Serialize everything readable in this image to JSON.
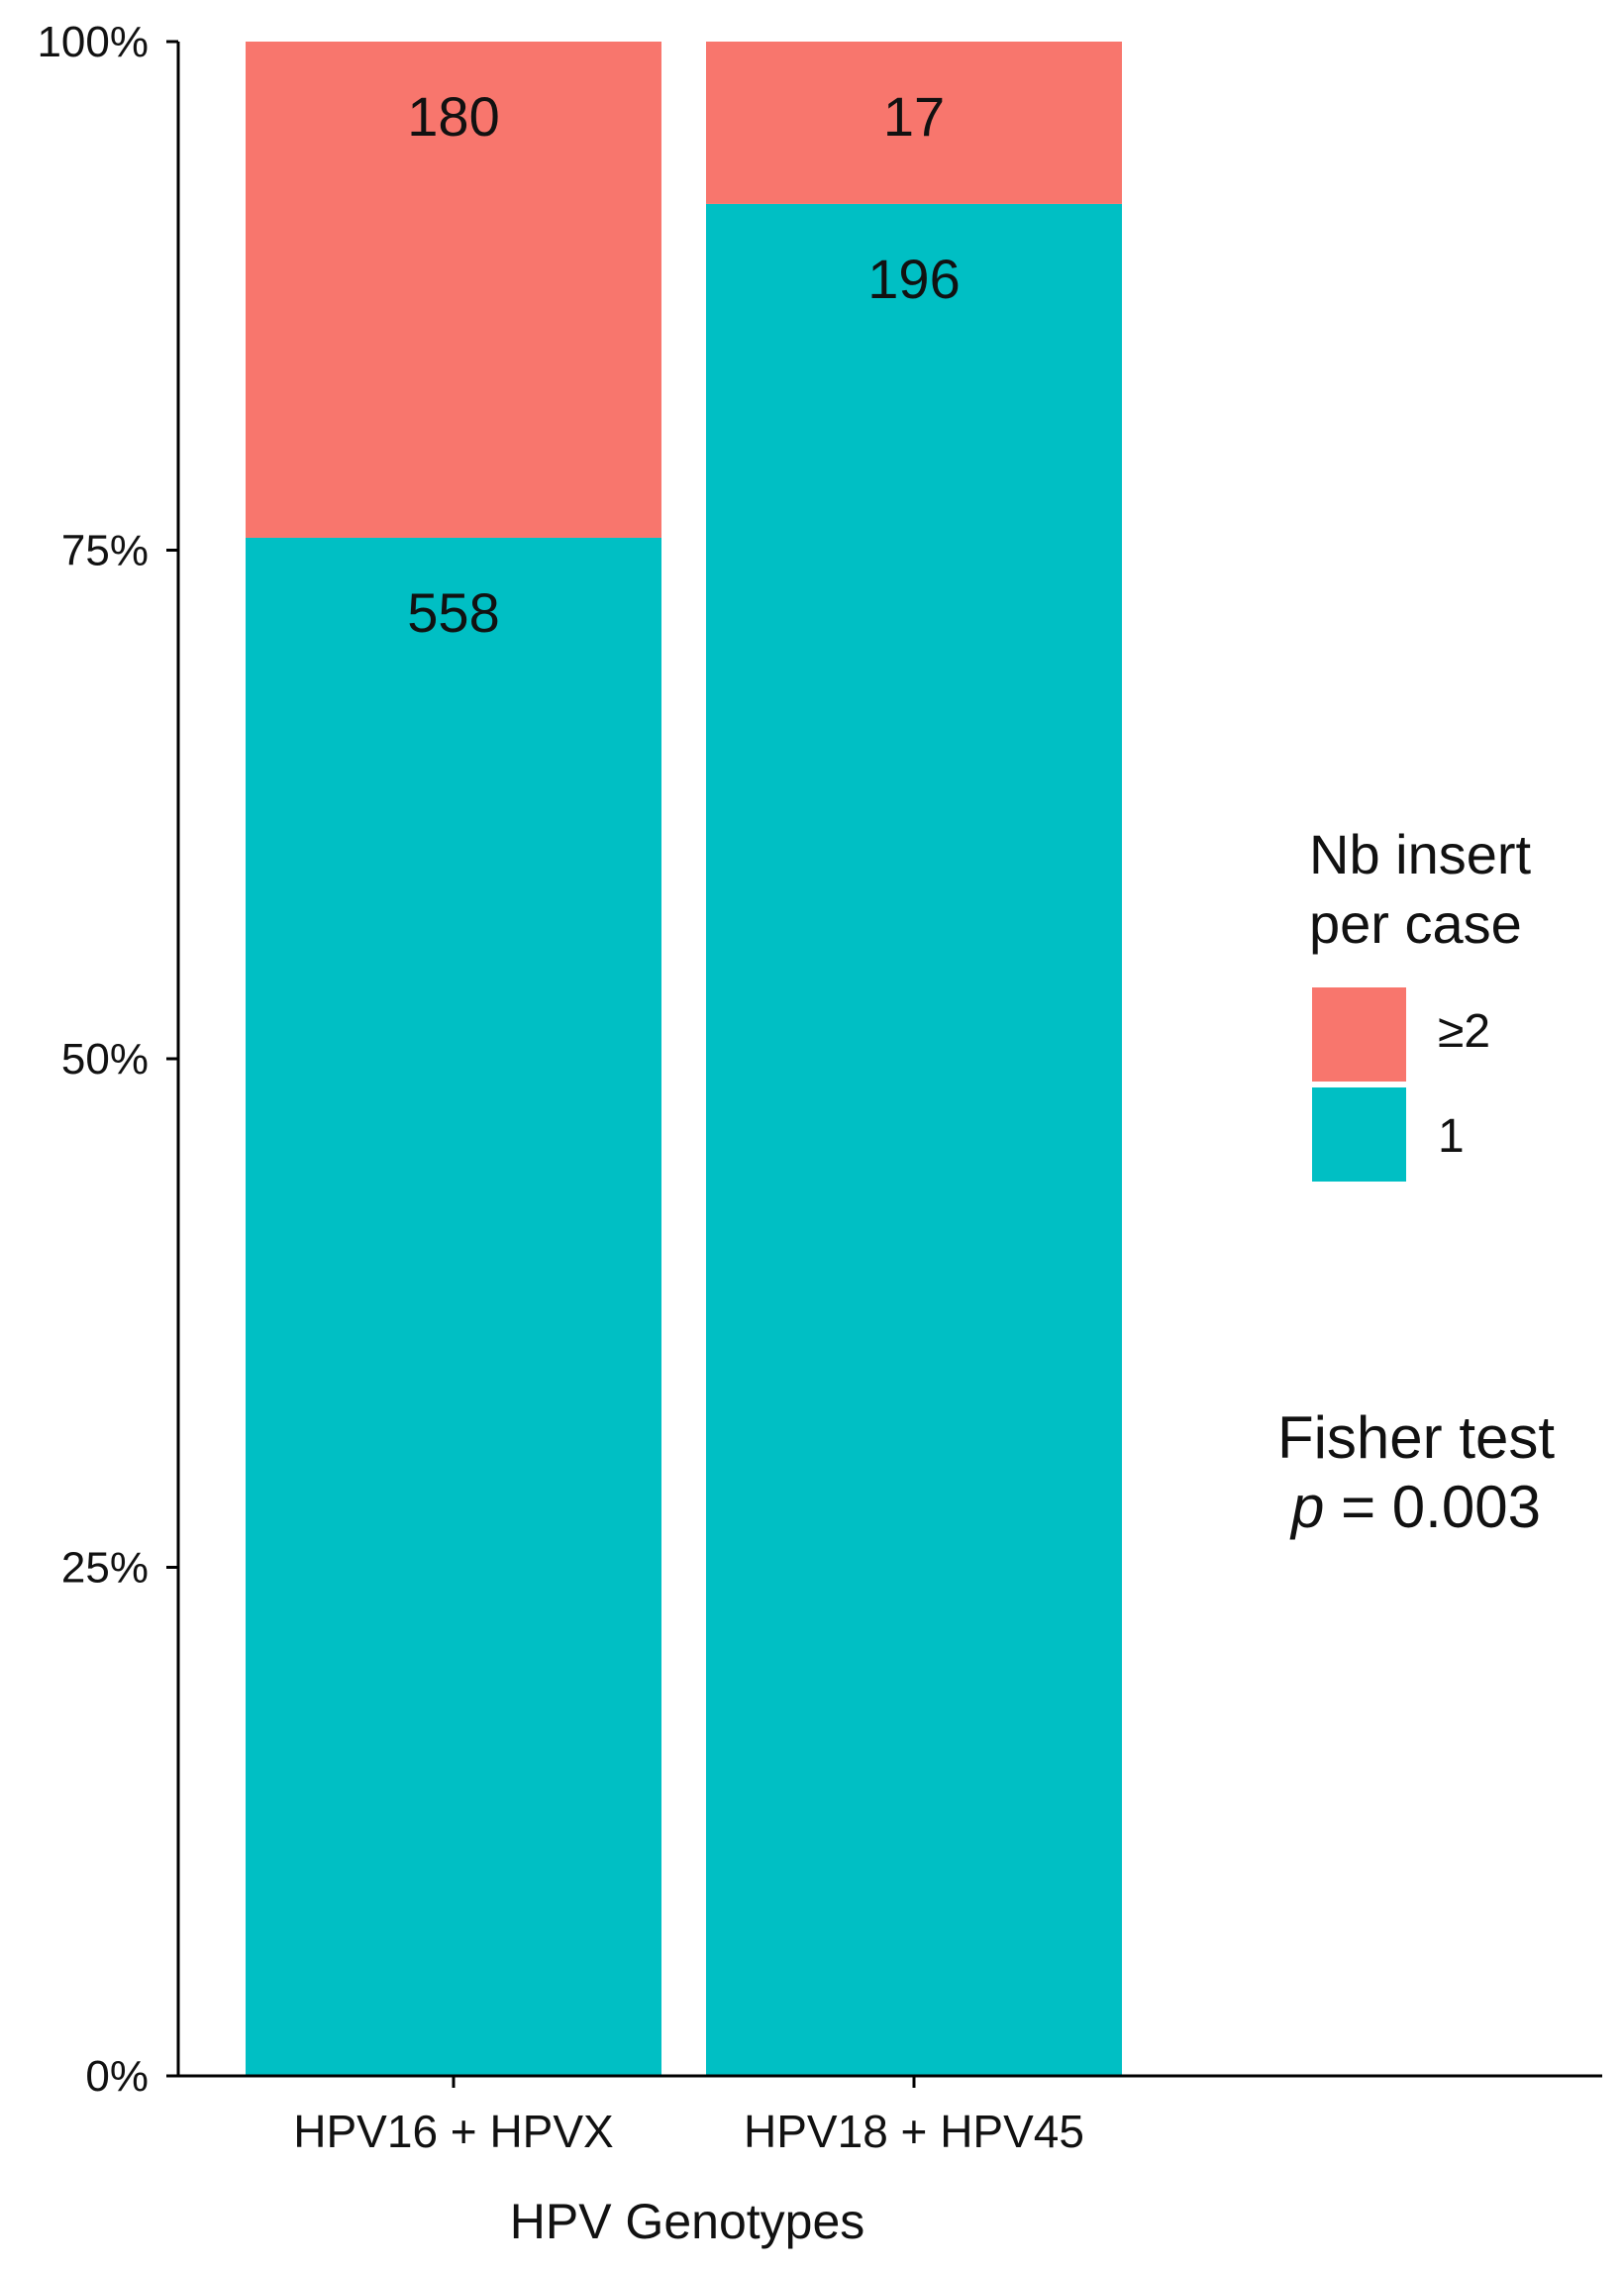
{
  "chart_data": {
    "type": "bar",
    "stacked": "percent",
    "categories": [
      "HPV16 + HPVX",
      "HPV18 + HPV45"
    ],
    "series": [
      {
        "name": "1",
        "values": [
          558,
          196
        ],
        "color": "#00BFC4"
      },
      {
        "name": "≥2",
        "values": [
          180,
          17
        ],
        "color": "#F8766D"
      }
    ],
    "xlabel": "HPV Genotypes",
    "ylabel": "",
    "ylim": [
      0,
      100
    ],
    "yticks": [
      "0%",
      "25%",
      "50%",
      "75%",
      "100%"
    ],
    "legend": {
      "title_lines": [
        "Nb insert",
        "per case"
      ],
      "placement": "right",
      "entries": [
        "≥2",
        "1"
      ]
    },
    "annotation": {
      "line1": "Fisher test",
      "p_symbol": "p",
      "p_rest": " = 0.003"
    },
    "grid": false
  }
}
